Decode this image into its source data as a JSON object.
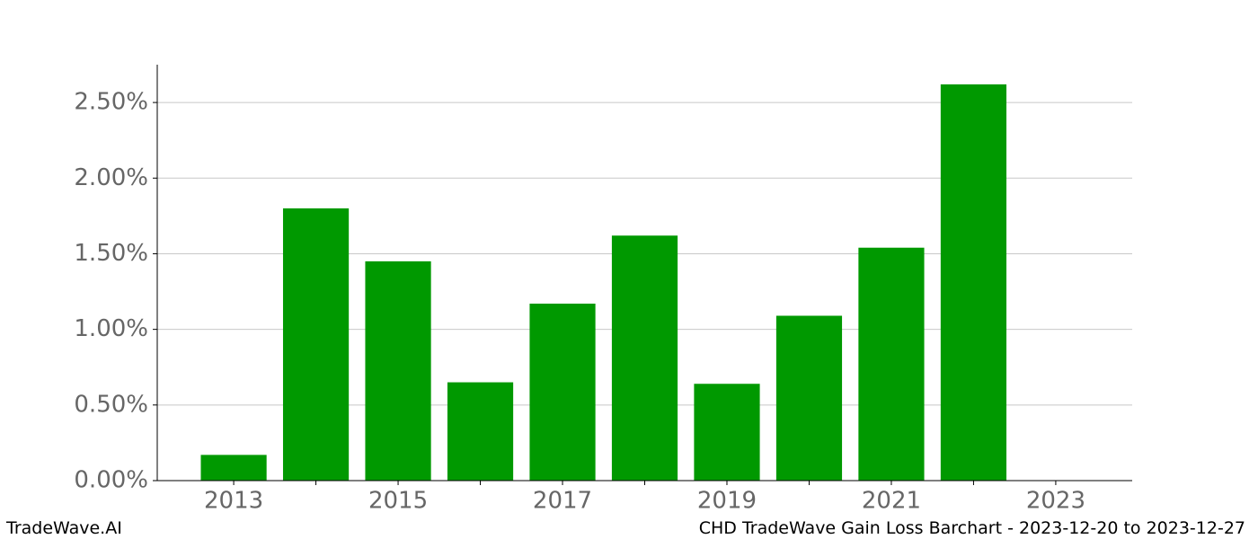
{
  "chart_data": {
    "type": "bar",
    "title": "CHD TradeWave Gain Loss Barchart - 2023-12-20 to 2023-12-27",
    "source": "TradeWave.AI",
    "x": [
      2013,
      2014,
      2015,
      2016,
      2017,
      2018,
      2019,
      2020,
      2021,
      2022
    ],
    "values": [
      0.17,
      1.8,
      1.45,
      0.65,
      1.17,
      1.62,
      0.64,
      1.09,
      1.54,
      2.62
    ],
    "color": "#009900",
    "bar_width": 0.8,
    "xlim": [
      2012.07,
      2023.93
    ],
    "xticks": [
      2013,
      2015,
      2017,
      2019,
      2021,
      2023
    ],
    "xminorticks": [
      2014,
      2016,
      2018,
      2020,
      2022
    ],
    "ylim": [
      0,
      2.75
    ],
    "yticks": [
      {
        "value": 0,
        "label": "0.00%"
      },
      {
        "value": 0.5,
        "label": "0.50%"
      },
      {
        "value": 1,
        "label": "1.00%"
      },
      {
        "value": 1.5,
        "label": "1.50%"
      },
      {
        "value": 2,
        "label": "2.00%"
      },
      {
        "value": 2.5,
        "label": "2.50%"
      }
    ],
    "grid": true
  }
}
